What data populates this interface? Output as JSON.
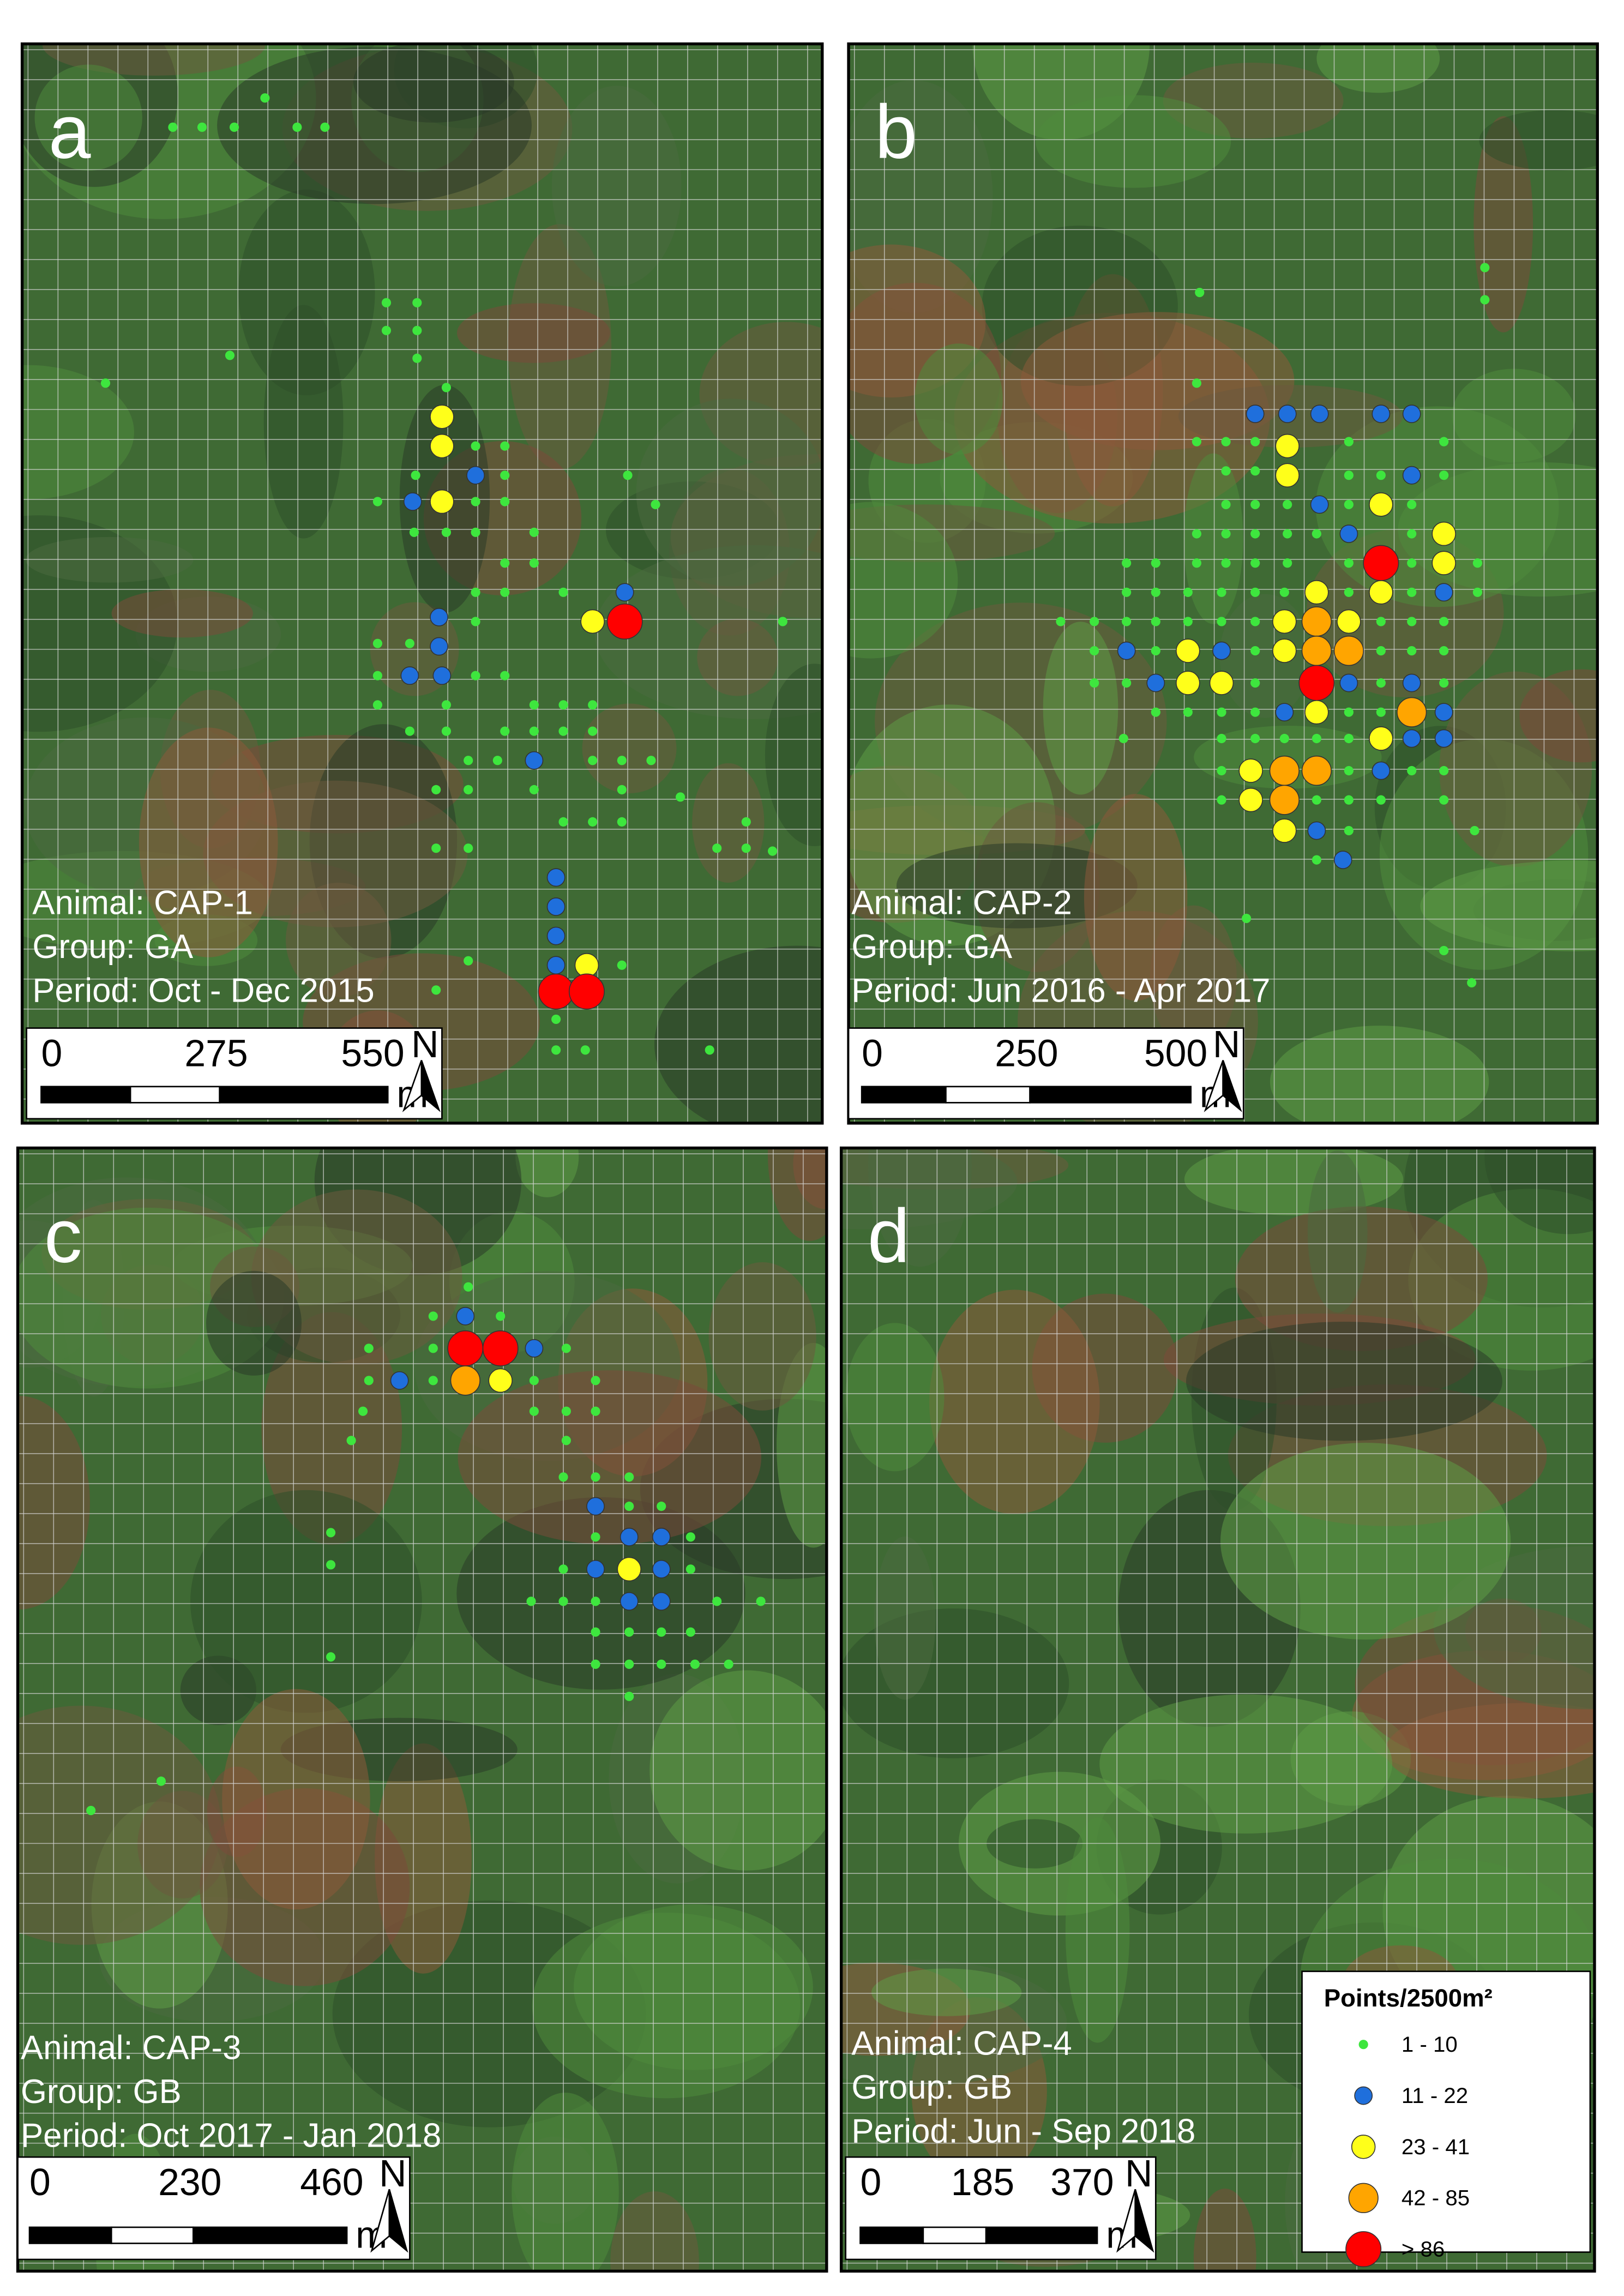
{
  "panels": [
    {
      "letter": "a",
      "animal": "Animal: CAP-1",
      "group": "Group: GA",
      "period": "Period: Oct - Dec 2015",
      "scale": [
        "0",
        "275",
        "550"
      ],
      "unit": "m",
      "north": "N"
    },
    {
      "letter": "b",
      "animal": "Animal: CAP-2",
      "group": "Group: GA",
      "period": "Period: Jun 2016 - Apr 2017",
      "scale": [
        "0",
        "250",
        "500"
      ],
      "unit": "m",
      "north": "N"
    },
    {
      "letter": "c",
      "animal": "Animal: CAP-3",
      "group": "Group: GB",
      "period": "Period: Oct 2017 - Jan 2018",
      "scale": [
        "0",
        "230",
        "460"
      ],
      "unit": "m",
      "north": "N"
    },
    {
      "letter": "d",
      "animal": "Animal: CAP-4",
      "group": "Group: GB",
      "period": "Period: Jun - Sep 2018",
      "scale": [
        "0",
        "185",
        "370"
      ],
      "unit": "m",
      "north": "N"
    }
  ],
  "legend": {
    "title": "Points/2500m²",
    "classes": [
      "1 - 10",
      "11 - 22",
      "23 - 41",
      "42 - 85",
      "> 86"
    ]
  }
}
